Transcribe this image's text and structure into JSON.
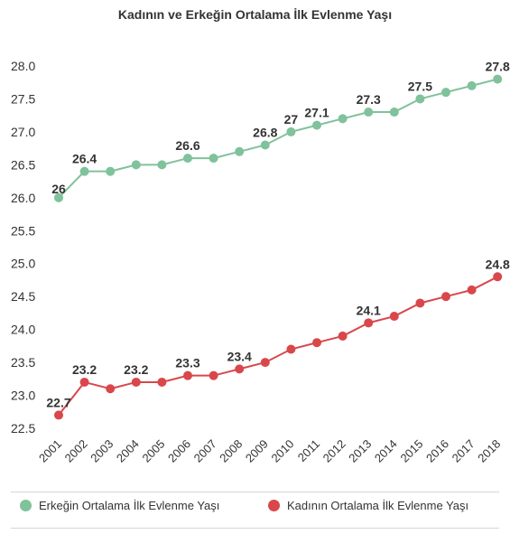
{
  "chart_data": {
    "type": "line",
    "title": "Kadının ve Erkeğin Ortalama İlk Evlenme Yaşı",
    "xlabel": "",
    "ylabel": "",
    "categories": [
      "2001",
      "2002",
      "2003",
      "2004",
      "2005",
      "2006",
      "2007",
      "2008",
      "2009",
      "2010",
      "2011",
      "2012",
      "2013",
      "2014",
      "2015",
      "2016",
      "2017",
      "2018"
    ],
    "ylim": [
      22.5,
      28.0
    ],
    "yticks": [
      "22.5",
      "23.0",
      "23.5",
      "24.0",
      "24.5",
      "25.0",
      "25.5",
      "26.0",
      "26.5",
      "27.0",
      "27.5",
      "28.0"
    ],
    "grid": false,
    "legend_position": "bottom",
    "series": [
      {
        "name": "Erkeğin Ortalama İlk Evlenme Yaşı",
        "color": "#7fc29b",
        "values": [
          26.0,
          26.4,
          26.4,
          26.5,
          26.5,
          26.6,
          26.6,
          26.7,
          26.8,
          27.0,
          27.1,
          27.2,
          27.3,
          27.3,
          27.5,
          27.6,
          27.7,
          27.8
        ],
        "data_labels": [
          "26",
          "26.4",
          null,
          null,
          null,
          "26.6",
          null,
          null,
          "26.8",
          "27",
          "27.1",
          null,
          "27.3",
          null,
          "27.5",
          null,
          null,
          "27.8"
        ]
      },
      {
        "name": "Kadının Ortalama İlk Evlenme Yaşı",
        "color": "#d9474b",
        "values": [
          22.7,
          23.2,
          23.1,
          23.2,
          23.2,
          23.3,
          23.3,
          23.4,
          23.5,
          23.7,
          23.8,
          23.9,
          24.1,
          24.2,
          24.4,
          24.5,
          24.6,
          24.8
        ],
        "data_labels": [
          "22.7",
          "23.2",
          null,
          "23.2",
          null,
          "23.3",
          null,
          "23.4",
          null,
          null,
          null,
          null,
          "24.1",
          null,
          null,
          null,
          null,
          "24.8"
        ]
      }
    ]
  }
}
